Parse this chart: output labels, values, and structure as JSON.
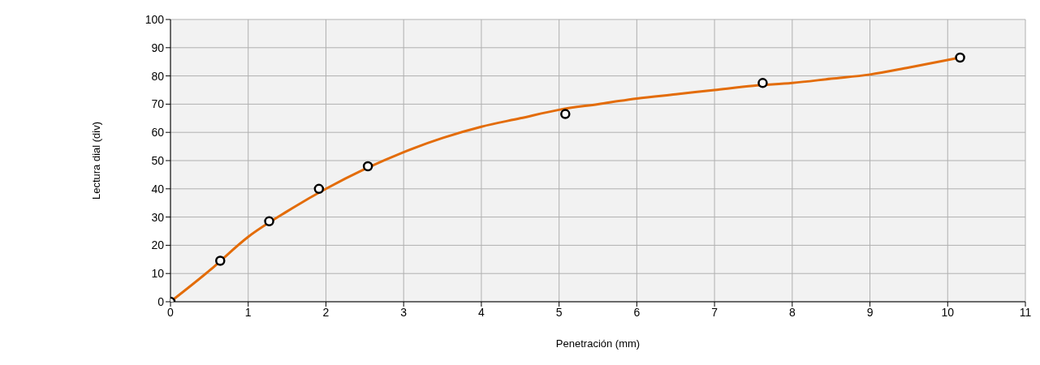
{
  "chart_data": {
    "type": "scatter",
    "xlabel": "Penetración (mm)",
    "ylabel": "Lectura dial (div)",
    "xlim": [
      0,
      11
    ],
    "xticks": [
      0,
      1,
      2,
      3,
      4,
      5,
      6,
      7,
      8,
      9,
      10,
      11
    ],
    "ylim": [
      0,
      100
    ],
    "yticks": [
      0,
      10,
      20,
      30,
      40,
      50,
      60,
      70,
      80,
      90,
      100
    ],
    "grid": true,
    "series": [
      {
        "type": "line",
        "color": "#e36c09",
        "x": [
          0,
          0.5,
          1,
          1.5,
          2,
          2.5,
          3,
          3.5,
          4,
          4.5,
          5,
          5.5,
          6,
          6.5,
          7,
          7.5,
          8,
          8.5,
          9,
          9.5,
          10.16
        ],
        "values": [
          0,
          11,
          23,
          32,
          40,
          47,
          53,
          58,
          62,
          65,
          68,
          70,
          72,
          73.5,
          75,
          76.5,
          77.5,
          79,
          80.5,
          83,
          86.5
        ]
      },
      {
        "marker": "circle",
        "color": "#000000",
        "x": [
          0,
          0.64,
          1.27,
          1.91,
          2.54,
          5.08,
          7.62,
          10.16
        ],
        "values": [
          0,
          14.5,
          28.5,
          40,
          48,
          66.5,
          77.5,
          86.5
        ]
      }
    ]
  }
}
